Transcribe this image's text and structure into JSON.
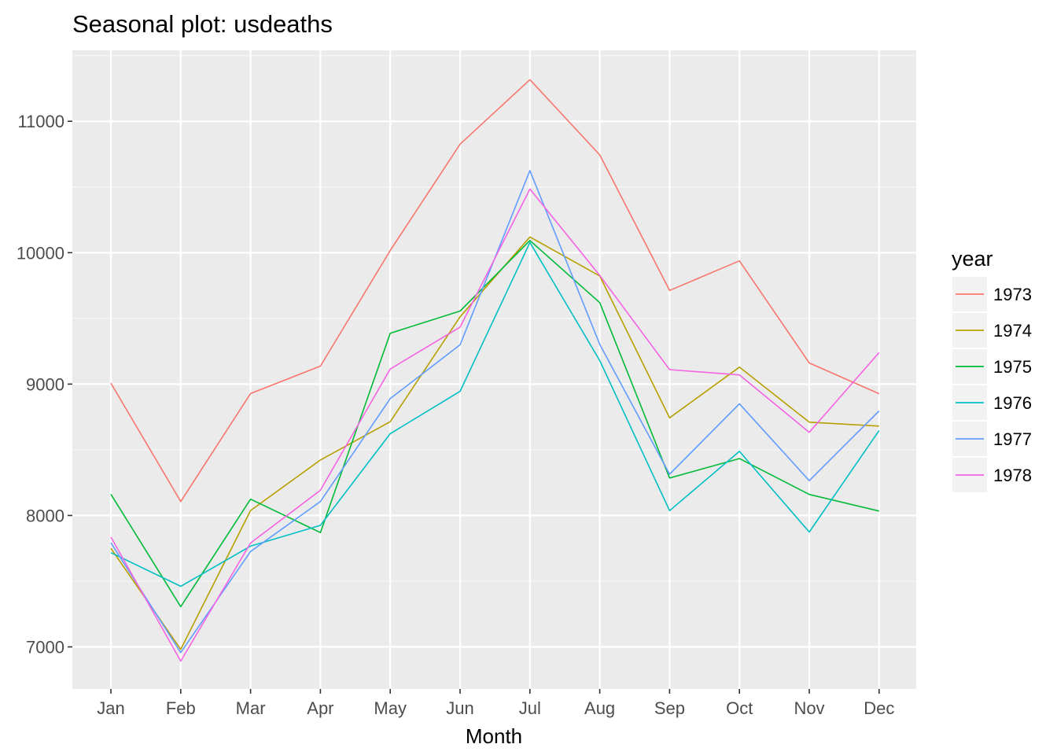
{
  "chart_data": {
    "type": "line",
    "title": "Seasonal plot: usdeaths",
    "xlabel": "Month",
    "ylabel": "",
    "categories": [
      "Jan",
      "Feb",
      "Mar",
      "Apr",
      "May",
      "Jun",
      "Jul",
      "Aug",
      "Sep",
      "Oct",
      "Nov",
      "Dec"
    ],
    "yticks": [
      7000,
      8000,
      9000,
      10000,
      11000
    ],
    "ylim": [
      6680,
      11540
    ],
    "grid": true,
    "legend": {
      "title": "year",
      "placement": "right"
    },
    "series": [
      {
        "name": "1973",
        "color": "#F8766D",
        "values": [
          9007,
          8106,
          8928,
          9137,
          10017,
          10826,
          11317,
          10744,
          9713,
          9938,
          9161,
          8927
        ]
      },
      {
        "name": "1974",
        "color": "#B79F00",
        "values": [
          7750,
          6981,
          8038,
          8422,
          8714,
          9512,
          10120,
          9823,
          8743,
          9129,
          8710,
          8680
        ]
      },
      {
        "name": "1975",
        "color": "#00BA38",
        "values": [
          8162,
          7306,
          8124,
          7870,
          9387,
          9556,
          10093,
          9620,
          8285,
          8433,
          8160,
          8034
        ]
      },
      {
        "name": "1976",
        "color": "#00BFC4",
        "values": [
          7717,
          7461,
          7767,
          7925,
          8623,
          8945,
          10078,
          9179,
          8037,
          8488,
          7874,
          8647
        ]
      },
      {
        "name": "1977",
        "color": "#619CFF",
        "values": [
          7792,
          6957,
          7726,
          8106,
          8890,
          9299,
          10625,
          9302,
          8314,
          8850,
          8265,
          8796
        ]
      },
      {
        "name": "1978",
        "color": "#F564E3",
        "values": [
          7836,
          6892,
          7791,
          8192,
          9115,
          9434,
          10484,
          9827,
          9110,
          9070,
          8633,
          9240
        ]
      }
    ]
  }
}
